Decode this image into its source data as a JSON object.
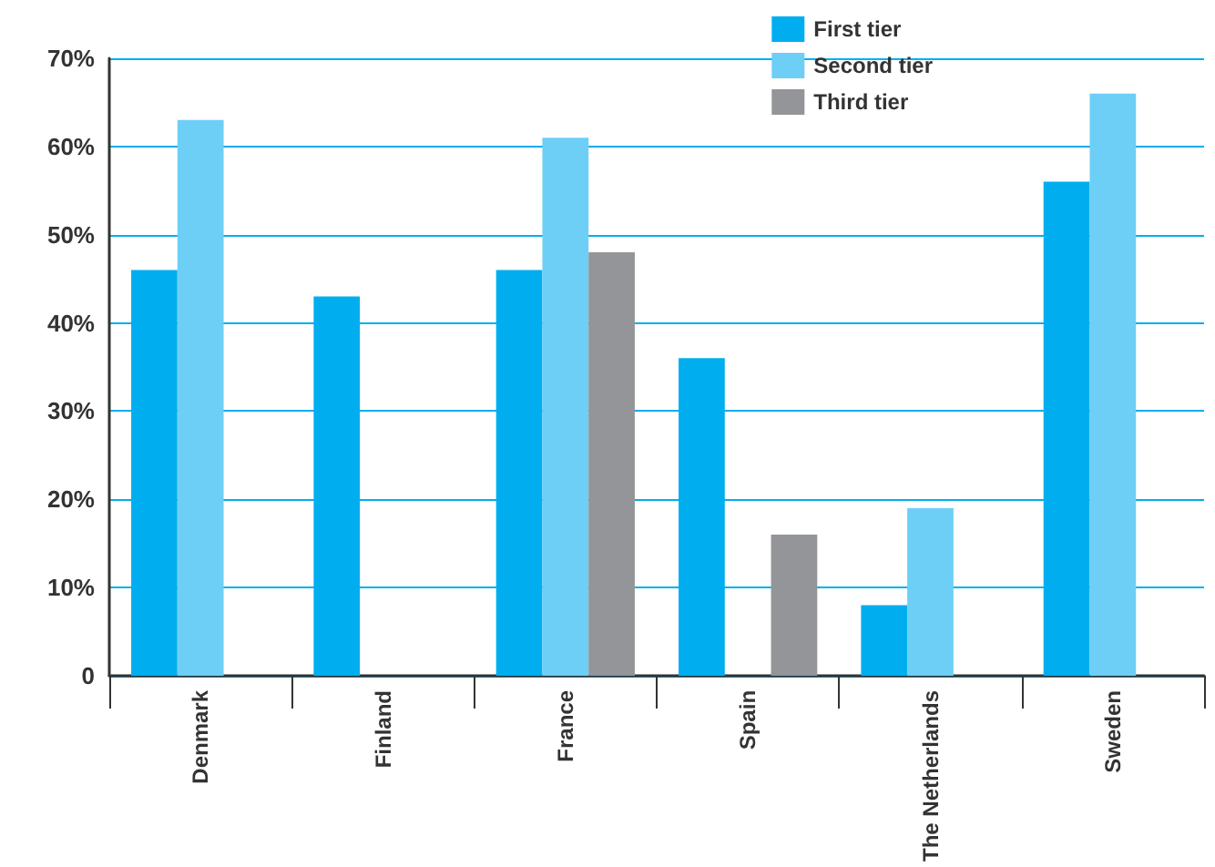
{
  "chart_data": {
    "type": "bar",
    "categories": [
      "Denmark",
      "Finland",
      "France",
      "Spain",
      "The Netherlands",
      "Sweden"
    ],
    "series": [
      {
        "name": "First tier",
        "color": "#00aeef",
        "values": [
          46,
          43,
          46,
          36,
          8,
          56
        ]
      },
      {
        "name": "Second tier",
        "color": "#6dcff6",
        "values": [
          63,
          null,
          61,
          null,
          19,
          66
        ]
      },
      {
        "name": "Third tier",
        "color": "#939598",
        "values": [
          null,
          null,
          48,
          16,
          null,
          null
        ]
      }
    ],
    "ylim": [
      0,
      70
    ],
    "yticks": [
      0,
      {
        "value": 10,
        "label": "10%"
      },
      {
        "value": 20,
        "label": "20%"
      },
      {
        "value": 30,
        "label": "30%"
      },
      {
        "value": 40,
        "label": "40%"
      },
      {
        "value": 50,
        "label": "50%"
      },
      {
        "value": 60,
        "label": "60%"
      },
      {
        "value": 70,
        "label": "70%"
      }
    ],
    "grid": "y",
    "legend": "top right"
  }
}
